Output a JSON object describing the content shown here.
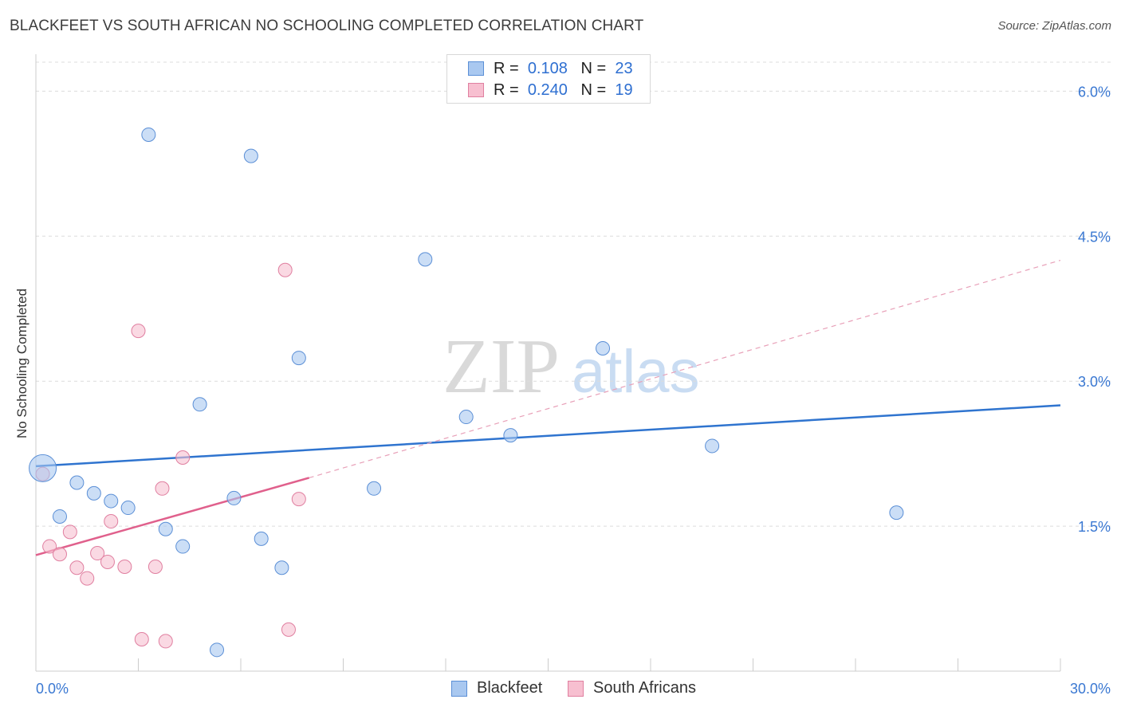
{
  "title": "BLACKFEET VS SOUTH AFRICAN NO SCHOOLING COMPLETED CORRELATION CHART",
  "source": "Source: ZipAtlas.com",
  "watermark": {
    "part1": "ZIP",
    "part2": "atlas"
  },
  "legend": {
    "rows": [
      {
        "r_label": "R =",
        "r_value": "0.108",
        "n_label": "N =",
        "n_value": "23",
        "color": "#a9c8f0",
        "border": "#5b8fd6"
      },
      {
        "r_label": "R =",
        "r_value": "0.240",
        "n_label": "N =",
        "n_value": "19",
        "color": "#f7bfd0",
        "border": "#e07fa0"
      }
    ]
  },
  "chart_data": {
    "type": "scatter",
    "title": "BLACKFEET VS SOUTH AFRICAN NO SCHOOLING COMPLETED CORRELATION CHART",
    "xlabel": "",
    "ylabel": "No Schooling Completed",
    "xlim": [
      0,
      30
    ],
    "ylim": [
      0,
      6.3
    ],
    "x_tick_labels": [
      "0.0%",
      "30.0%"
    ],
    "y_ticks": [
      1.5,
      3.0,
      4.5,
      6.0
    ],
    "y_tick_labels": [
      "1.5%",
      "3.0%",
      "4.5%",
      "6.0%"
    ],
    "grid": true,
    "legend_position": "top-center",
    "series": [
      {
        "name": "Blackfeet",
        "color": "#a9c8f0",
        "stroke": "#5b8fd6",
        "trend_color": "#2f74cf",
        "trend": {
          "x0": 0,
          "y0": 2.12,
          "x1": 30,
          "y1": 2.75
        },
        "points": [
          [
            0.2,
            2.1
          ],
          [
            0.7,
            1.6
          ],
          [
            1.2,
            1.95
          ],
          [
            1.7,
            1.84
          ],
          [
            2.2,
            1.76
          ],
          [
            2.7,
            1.69
          ],
          [
            3.3,
            5.55
          ],
          [
            3.8,
            1.47
          ],
          [
            4.3,
            1.29
          ],
          [
            4.8,
            2.76
          ],
          [
            5.3,
            0.22
          ],
          [
            5.8,
            1.79
          ],
          [
            6.3,
            5.33
          ],
          [
            6.6,
            1.37
          ],
          [
            7.2,
            1.07
          ],
          [
            7.7,
            3.24
          ],
          [
            9.9,
            1.89
          ],
          [
            11.4,
            4.26
          ],
          [
            12.6,
            2.63
          ],
          [
            13.9,
            2.44
          ],
          [
            16.6,
            3.34
          ],
          [
            19.8,
            2.33
          ],
          [
            25.2,
            1.64
          ]
        ]
      },
      {
        "name": "South Africans",
        "color": "#f7bfd0",
        "stroke": "#e07fa0",
        "trend_color": "#e0608c",
        "trend": {
          "x0": 0,
          "y0": 1.2,
          "x1": 8,
          "y1": 2.0
        },
        "trend_ext": {
          "x0": 8,
          "y0": 2.0,
          "x1": 30,
          "y1": 4.25
        },
        "points": [
          [
            0.2,
            2.04
          ],
          [
            0.4,
            1.29
          ],
          [
            0.7,
            1.21
          ],
          [
            1.0,
            1.44
          ],
          [
            1.2,
            1.07
          ],
          [
            1.5,
            0.96
          ],
          [
            1.8,
            1.22
          ],
          [
            2.1,
            1.13
          ],
          [
            2.2,
            1.55
          ],
          [
            2.6,
            1.08
          ],
          [
            3.0,
            3.52
          ],
          [
            3.1,
            0.33
          ],
          [
            3.5,
            1.08
          ],
          [
            3.7,
            1.89
          ],
          [
            3.8,
            0.31
          ],
          [
            4.3,
            2.21
          ],
          [
            7.3,
            4.15
          ],
          [
            7.4,
            0.43
          ],
          [
            7.7,
            1.78
          ]
        ]
      }
    ]
  }
}
